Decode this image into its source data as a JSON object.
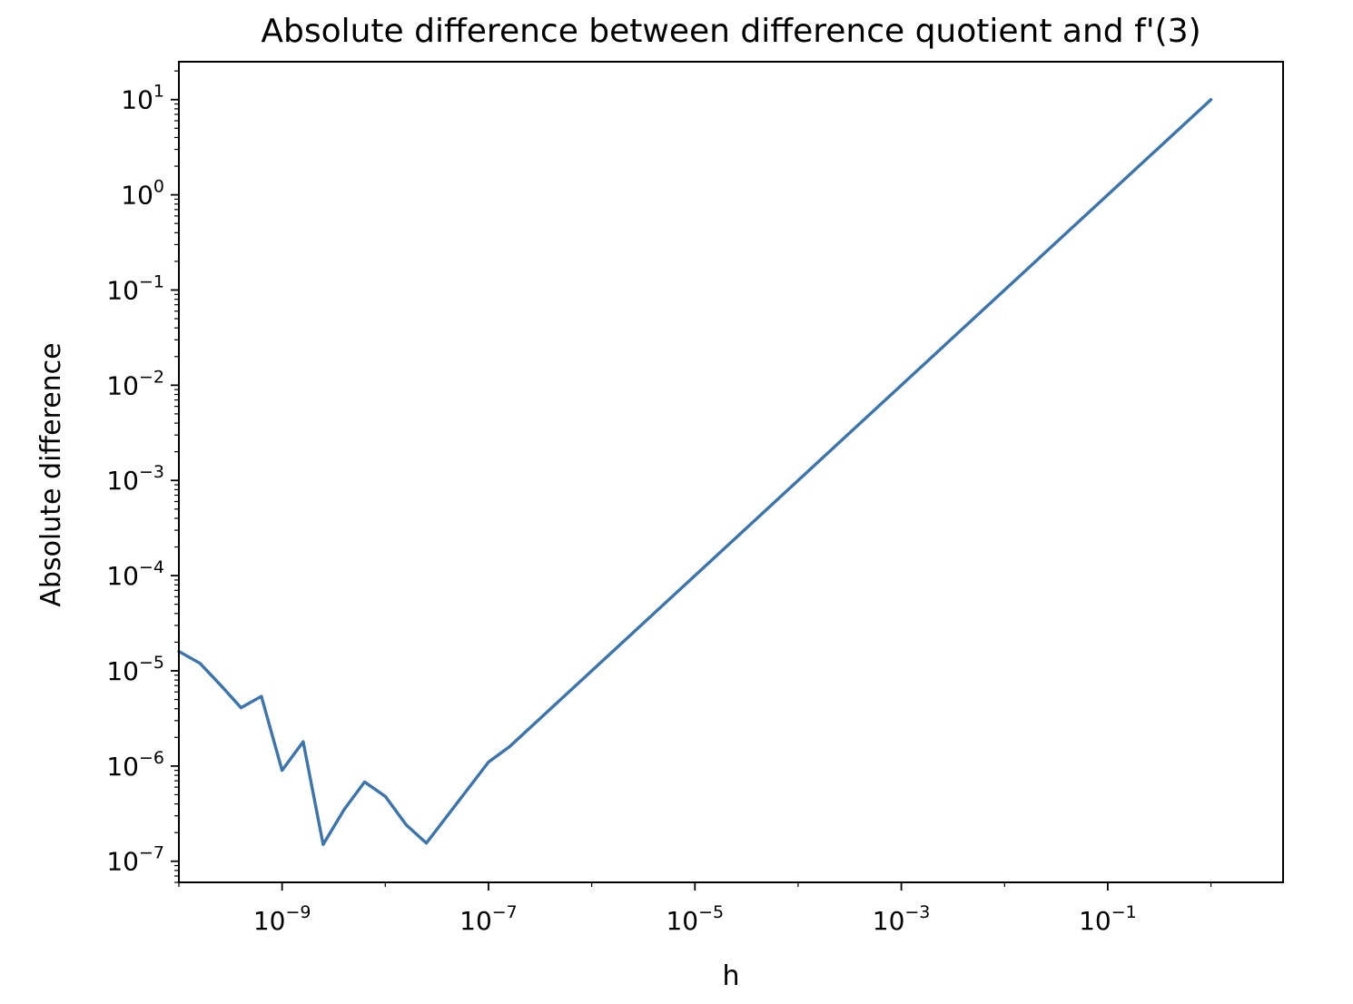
{
  "chart_data": {
    "type": "line",
    "title": "Absolute difference between difference quotient and f'(3)",
    "xlabel": "h",
    "ylabel": "Absolute difference",
    "xscale": "log",
    "yscale": "log",
    "xlim": [
      1e-10,
      5
    ],
    "ylim": [
      6e-08,
      25
    ],
    "grid": false,
    "x_ticks": [
      {
        "base": "10",
        "exp": "−9",
        "value": 1e-09
      },
      {
        "base": "10",
        "exp": "−7",
        "value": 1e-07
      },
      {
        "base": "10",
        "exp": "−5",
        "value": 1e-05
      },
      {
        "base": "10",
        "exp": "−3",
        "value": 0.001
      },
      {
        "base": "10",
        "exp": "−1",
        "value": 0.1
      }
    ],
    "y_ticks": [
      {
        "base": "10",
        "exp": "1",
        "value": 10
      },
      {
        "base": "10",
        "exp": "0",
        "value": 1
      },
      {
        "base": "10",
        "exp": "−1",
        "value": 0.1
      },
      {
        "base": "10",
        "exp": "−2",
        "value": 0.01
      },
      {
        "base": "10",
        "exp": "−3",
        "value": 0.001
      },
      {
        "base": "10",
        "exp": "−4",
        "value": 0.0001
      },
      {
        "base": "10",
        "exp": "−5",
        "value": 1e-05
      },
      {
        "base": "10",
        "exp": "−6",
        "value": 1e-06
      },
      {
        "base": "10",
        "exp": "−7",
        "value": 1e-07
      }
    ],
    "series": [
      {
        "color": "#3b75af",
        "x": [
          1e-10,
          1.6e-10,
          2.5e-10,
          4e-10,
          6.3e-10,
          1e-09,
          1.6e-09,
          2.5e-09,
          4e-09,
          6.3e-09,
          1e-08,
          1.6e-08,
          2.5e-08,
          1e-07,
          1.6e-07,
          1e-06,
          1e-05,
          0.0001,
          0.001,
          0.01,
          0.1,
          1
        ],
        "y": [
          1.6e-05,
          1.2e-05,
          7.2e-06,
          4.1e-06,
          5.4e-06,
          9e-07,
          1.8e-06,
          1.5e-07,
          3.5e-07,
          6.8e-07,
          4.8e-07,
          2.4e-07,
          1.55e-07,
          1.1e-06,
          1.6e-06,
          1e-05,
          0.0001,
          0.001,
          0.01,
          0.1,
          1,
          10
        ]
      }
    ]
  }
}
